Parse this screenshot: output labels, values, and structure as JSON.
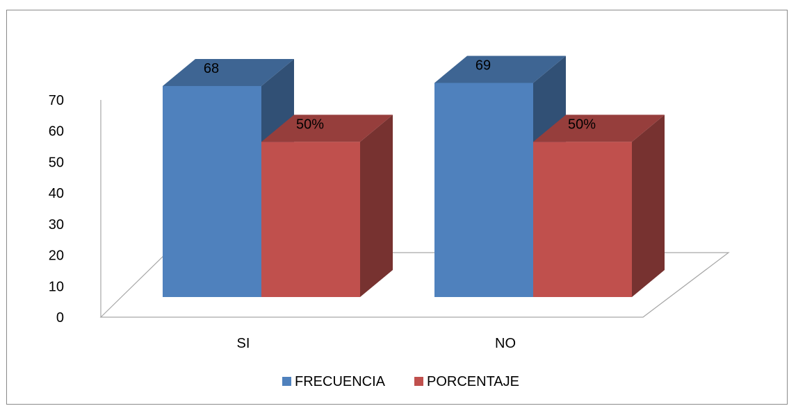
{
  "chart_data": {
    "type": "bar",
    "style": "3d-clustered",
    "categories": [
      "SI",
      "NO"
    ],
    "series": [
      {
        "name": "FRECUENCIA",
        "values": [
          68,
          69
        ],
        "labels": [
          "68",
          "69"
        ],
        "color": "#4f81bd"
      },
      {
        "name": "PORCENTAJE",
        "values": [
          50,
          50
        ],
        "labels": [
          "50%",
          "50%"
        ],
        "color": "#c0504d"
      }
    ],
    "y_ticks": [
      0,
      10,
      20,
      30,
      40,
      50,
      60,
      70
    ],
    "ylim": [
      0,
      70
    ],
    "grid": false,
    "legend_position": "bottom"
  }
}
